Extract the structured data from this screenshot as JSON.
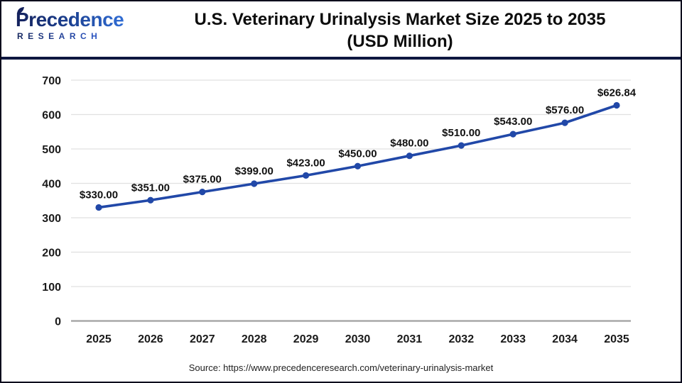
{
  "header": {
    "logo": {
      "brand": "Precedence",
      "subtitle": "RESEARCH"
    },
    "title_line1": "U.S. Veterinary Urinalysis Market Size 2025 to 2035",
    "title_line2": "(USD Million)"
  },
  "chart_data": {
    "type": "line",
    "title": "U.S. Veterinary Urinalysis Market Size 2025 to 2035 (USD Million)",
    "categories": [
      "2025",
      "2026",
      "2027",
      "2028",
      "2029",
      "2030",
      "2031",
      "2032",
      "2033",
      "2034",
      "2035"
    ],
    "values": [
      330,
      351,
      375,
      399,
      423,
      450,
      480,
      510,
      543,
      576,
      626.84
    ],
    "point_labels": [
      "$330.00",
      "$351.00",
      "$375.00",
      "$399.00",
      "$423.00",
      "$450.00",
      "$480.00",
      "$510.00",
      "$543.00",
      "$576.00",
      "$626.84"
    ],
    "ylim": [
      0,
      700
    ],
    "yticks": [
      0,
      100,
      200,
      300,
      400,
      500,
      600,
      700
    ],
    "grid": true,
    "legend": "none",
    "xlabel": "",
    "ylabel": "",
    "colors": {
      "line": "#2148a8",
      "marker": "#2148a8",
      "data_label": "#111111",
      "tick_label": "#1a1a1a",
      "gridline": "#e0e0e0",
      "axis_line": "#a8a8a8"
    }
  },
  "footer": {
    "source": "Source: https://www.precedenceresearch.com/veterinary-urinalysis-market"
  }
}
